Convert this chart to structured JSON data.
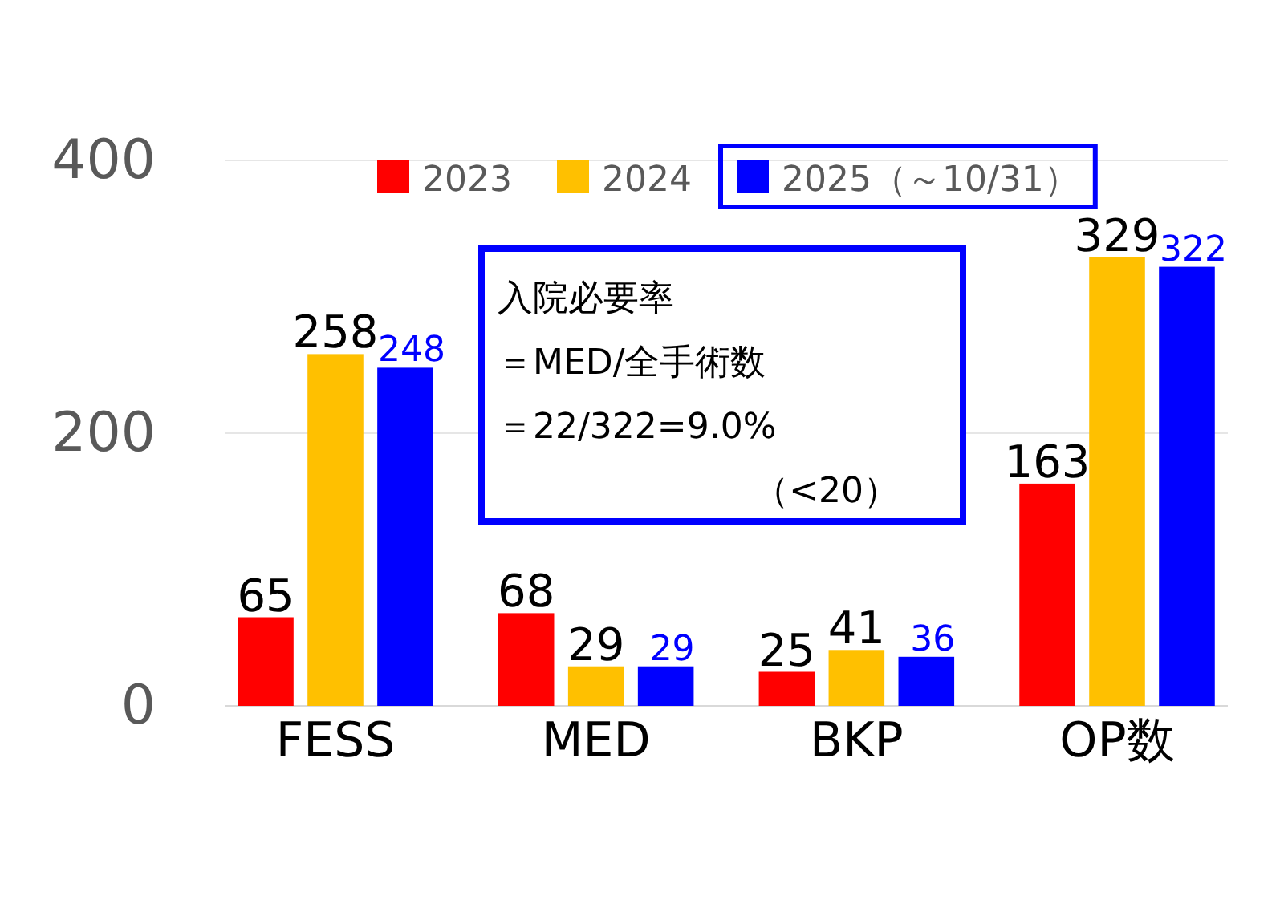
{
  "chart_data": {
    "type": "bar",
    "categories": [
      "FESS",
      "MED",
      "BKP",
      "OP数"
    ],
    "series": [
      {
        "name": "2023",
        "color": "#ff0000",
        "values": [
          65,
          68,
          25,
          163
        ]
      },
      {
        "name": "2024",
        "color": "#ffc000",
        "values": [
          258,
          29,
          41,
          329
        ]
      },
      {
        "name": "2025（～10/31）",
        "color": "#0000ff",
        "values": [
          248,
          29,
          36,
          322
        ]
      }
    ],
    "ylim": [
      0,
      400
    ],
    "yticks": [
      0,
      200,
      400
    ],
    "grid": "y",
    "legend": "top",
    "data_labels": true,
    "annotations": [
      "入院必要率",
      "＝MED/全手術数",
      "＝22/322=9.0%",
      "（<20）"
    ]
  }
}
